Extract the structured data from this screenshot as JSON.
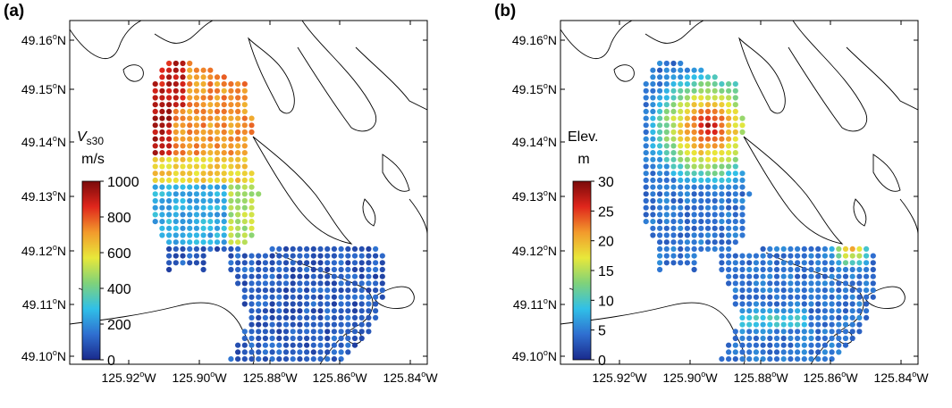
{
  "panels": [
    {
      "id": "a",
      "label": "(a)",
      "colorbar": {
        "title_main": "V",
        "title_sub": "s30",
        "unit": "m/s",
        "ticks": [
          "1000",
          "800",
          "600",
          "400",
          "200",
          "0"
        ]
      }
    },
    {
      "id": "b",
      "label": "(b)",
      "colorbar": {
        "title_main": "Elev.",
        "title_sub": "",
        "unit": "m",
        "ticks": [
          "30",
          "25",
          "20",
          "15",
          "10",
          "5",
          "0"
        ]
      }
    }
  ],
  "axes": {
    "y_ticks": [
      "49.16",
      "49.15",
      "49.14",
      "49.13",
      "49.12",
      "49.11",
      "49.10"
    ],
    "y_suffix": "N",
    "x_ticks": [
      "125.92",
      "125.90",
      "125.88",
      "125.86",
      "125.84"
    ],
    "x_suffix": "W",
    "degree_symbol": "o"
  },
  "colors": {
    "colormap": [
      "#1a2a8c",
      "#2f6fd0",
      "#30c0e8",
      "#7fd27a",
      "#e8e83a",
      "#f29a2c",
      "#e0261c",
      "#7a0a0a"
    ],
    "coastline": "#000000",
    "frame": "#000000"
  },
  "icons": {
    "map_points": "filled-circle-markers",
    "coastline": "black-outline-polygons"
  }
}
